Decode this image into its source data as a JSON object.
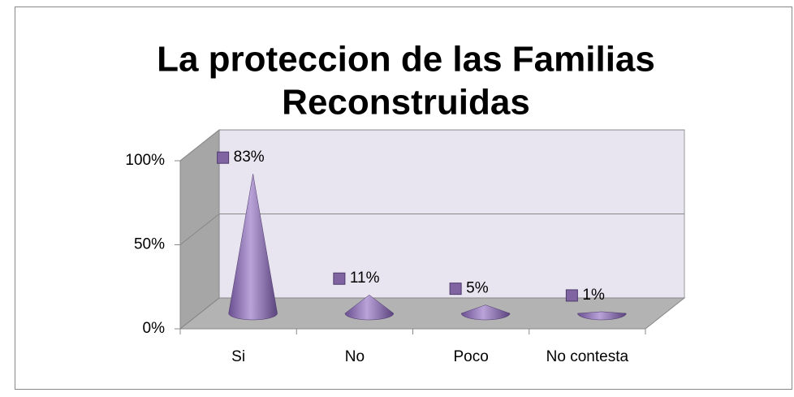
{
  "chart_data": {
    "type": "cone",
    "title": [
      "La proteccion de las Familias",
      "Reconstruidas"
    ],
    "categories": [
      "Si",
      "No",
      "Poco",
      "No contesta"
    ],
    "values": [
      83,
      11,
      5,
      1
    ],
    "value_labels": [
      "83%",
      "11%",
      "5%",
      "1%"
    ],
    "color": "#8064a2",
    "ylim": [
      0,
      100
    ],
    "yticks": [
      {
        "value": 0,
        "label": "0%"
      },
      {
        "value": 50,
        "label": "50%"
      },
      {
        "value": 100,
        "label": "100%"
      }
    ],
    "grid": true
  }
}
